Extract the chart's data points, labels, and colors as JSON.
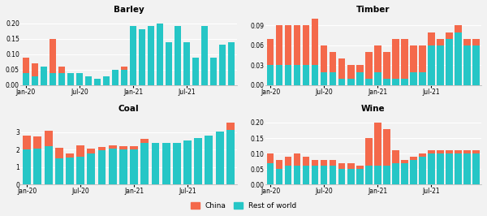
{
  "panels": {
    "Barley": {
      "china": [
        0.05,
        0.04,
        0.0,
        0.11,
        0.02,
        0.0,
        0.0,
        0.0,
        0.0,
        0.0,
        0.0,
        0.01,
        0.0,
        0.0,
        0.0,
        0.0,
        0.0,
        0.0,
        0.0,
        0.0,
        0.0,
        0.0,
        0.0,
        0.0
      ],
      "row": [
        0.04,
        0.03,
        0.06,
        0.04,
        0.04,
        0.04,
        0.04,
        0.03,
        0.02,
        0.03,
        0.05,
        0.05,
        0.19,
        0.18,
        0.19,
        0.2,
        0.14,
        0.19,
        0.14,
        0.09,
        0.19,
        0.09,
        0.13,
        0.14
      ],
      "yticks": [
        0.0,
        0.05,
        0.1,
        0.15,
        0.2
      ],
      "ylim": [
        0,
        0.225
      ],
      "xticks": [
        0,
        6,
        12,
        18
      ],
      "xlabels": [
        "Jan-20",
        "Jul-20",
        "Jan-21",
        "Jul-21"
      ]
    },
    "Timber": {
      "china": [
        0.04,
        0.06,
        0.06,
        0.06,
        0.06,
        0.07,
        0.04,
        0.03,
        0.03,
        0.02,
        0.01,
        0.04,
        0.04,
        0.04,
        0.06,
        0.06,
        0.04,
        0.04,
        0.02,
        0.01,
        0.01,
        0.01,
        0.01,
        0.01
      ],
      "row": [
        0.03,
        0.03,
        0.03,
        0.03,
        0.03,
        0.03,
        0.02,
        0.02,
        0.01,
        0.01,
        0.02,
        0.01,
        0.02,
        0.01,
        0.01,
        0.01,
        0.02,
        0.02,
        0.06,
        0.06,
        0.07,
        0.08,
        0.06,
        0.06
      ],
      "yticks": [
        0.0,
        0.03,
        0.06,
        0.09
      ],
      "ylim": [
        0,
        0.105
      ],
      "xticks": [
        0,
        6,
        12,
        18
      ],
      "xlabels": [
        "Jan-20",
        "Jul-20",
        "Jan-21",
        "Jul-21"
      ]
    },
    "Coal": {
      "china": [
        0.8,
        0.7,
        0.9,
        0.6,
        0.25,
        0.65,
        0.25,
        0.2,
        0.2,
        0.2,
        0.2,
        0.2,
        0.0,
        0.0,
        0.0,
        0.0,
        0.0,
        0.0,
        0.0,
        0.4
      ],
      "row": [
        2.0,
        2.05,
        2.2,
        1.5,
        1.55,
        1.6,
        1.8,
        1.95,
        2.05,
        2.0,
        2.0,
        2.4,
        2.4,
        2.4,
        2.4,
        2.55,
        2.65,
        2.8,
        3.05,
        3.15
      ],
      "yticks": [
        0,
        1,
        2,
        3
      ],
      "ylim": [
        0,
        4.0
      ],
      "xticks": [
        0,
        5,
        10,
        15
      ],
      "xlabels": [
        "Jan-20",
        "Jul-20",
        "Jan-21",
        "Jul-21"
      ]
    },
    "Wine": {
      "china": [
        0.03,
        0.03,
        0.03,
        0.04,
        0.03,
        0.02,
        0.02,
        0.02,
        0.02,
        0.02,
        0.01,
        0.09,
        0.14,
        0.12,
        0.04,
        0.01,
        0.01,
        0.01,
        0.01,
        0.01,
        0.01,
        0.01,
        0.01,
        0.01
      ],
      "row": [
        0.07,
        0.05,
        0.06,
        0.06,
        0.06,
        0.06,
        0.06,
        0.06,
        0.05,
        0.05,
        0.05,
        0.06,
        0.06,
        0.06,
        0.07,
        0.07,
        0.08,
        0.09,
        0.1,
        0.1,
        0.1,
        0.1,
        0.1,
        0.1
      ],
      "yticks": [
        0.0,
        0.05,
        0.1,
        0.15,
        0.2
      ],
      "ylim": [
        0,
        0.225
      ],
      "xticks": [
        0,
        6,
        12,
        18
      ],
      "xlabels": [
        "Jan-20",
        "Jul-20",
        "Jan-21",
        "Jul-21"
      ]
    }
  },
  "panel_order": [
    "Barley",
    "Timber",
    "Coal",
    "Wine"
  ],
  "color_china": "#F4694B",
  "color_row": "#26C6C6",
  "background_color": "#F2F2F2",
  "bar_width": 0.75
}
